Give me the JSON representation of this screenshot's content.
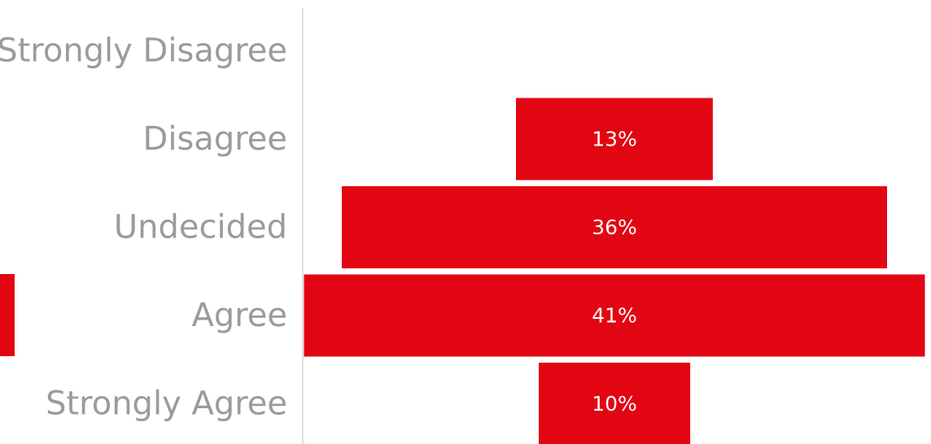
{
  "chart_data": {
    "type": "bar",
    "orientation": "horizontal",
    "layout": "centered-funnel",
    "categories": [
      "Strongly Disagree",
      "Disagree",
      "Undecided",
      "Agree",
      "Strongly Agree"
    ],
    "values": [
      0,
      13,
      36,
      41,
      10
    ],
    "value_labels": [
      "",
      "13%",
      "36%",
      "41%",
      "10%"
    ],
    "title": "",
    "xlabel": "",
    "ylabel": "",
    "grid": false,
    "legend": "none",
    "colors": {
      "bar": "#e20613",
      "label": "#9b9b9b",
      "value_label": "#ffffff",
      "axis": "#e0e0e0"
    }
  }
}
